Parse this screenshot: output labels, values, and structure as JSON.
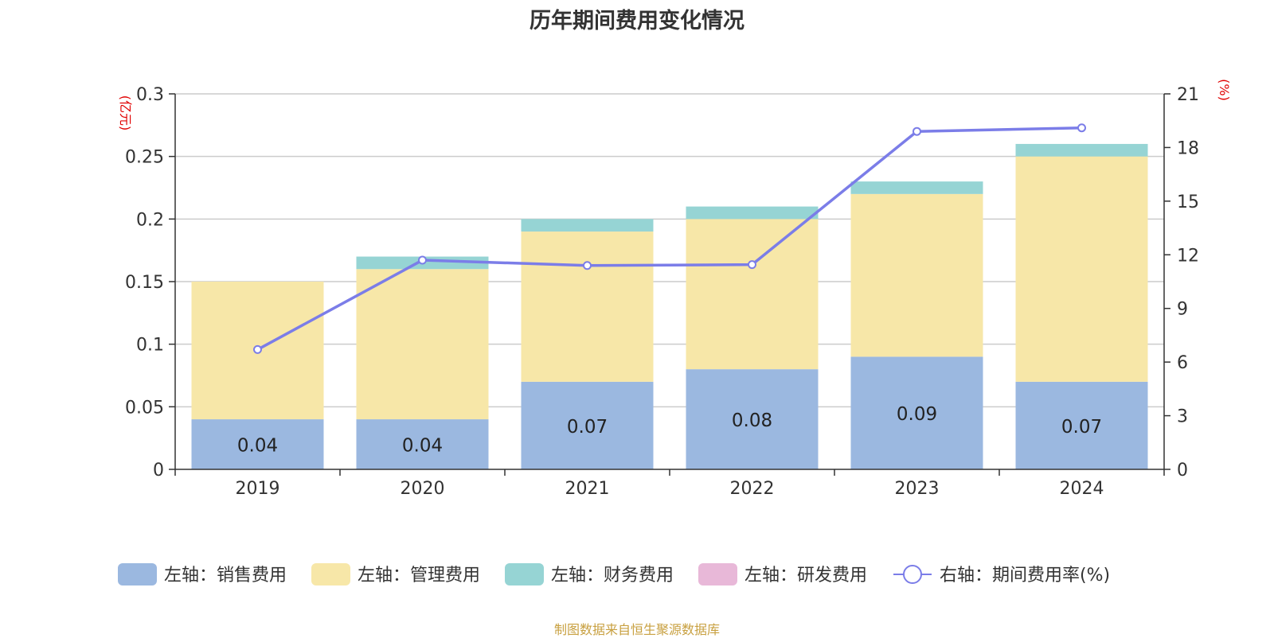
{
  "title": "历年期间费用变化情况",
  "source_note": "制图数据来自恒生聚源数据库",
  "chart_data": {
    "type": "bar",
    "stacked": true,
    "title": "历年期间费用变化情况",
    "categories": [
      "2019",
      "2020",
      "2021",
      "2022",
      "2023",
      "2024"
    ],
    "left_axis": {
      "unit": "(亿元)",
      "ylim": [
        0,
        0.3
      ],
      "ticks": [
        0,
        0.05,
        0.1,
        0.15,
        0.2,
        0.25,
        0.3
      ],
      "tick_labels": [
        "0",
        "0.05",
        "0.1",
        "0.15",
        "0.2",
        "0.25",
        "0.3"
      ]
    },
    "right_axis": {
      "unit": "(%)",
      "ylim": [
        0,
        21
      ],
      "ticks": [
        0,
        3,
        6,
        9,
        12,
        15,
        18,
        21
      ],
      "tick_labels": [
        "0",
        "3",
        "6",
        "9",
        "12",
        "15",
        "18",
        "21"
      ]
    },
    "grid": true,
    "legend_position": "bottom",
    "series": [
      {
        "name": "左轴：销售费用",
        "axis": "left",
        "type": "bar",
        "color": "#9bb8e0",
        "values": [
          0.04,
          0.04,
          0.07,
          0.08,
          0.09,
          0.07
        ],
        "labels": [
          "0.04",
          "0.04",
          "0.07",
          "0.08",
          "0.09",
          "0.07"
        ]
      },
      {
        "name": "左轴：管理费用",
        "axis": "left",
        "type": "bar",
        "color": "#f7e7a8",
        "values": [
          0.11,
          0.12,
          0.12,
          0.12,
          0.13,
          0.18
        ]
      },
      {
        "name": "左轴：财务费用",
        "axis": "left",
        "type": "bar",
        "color": "#96d4d4",
        "values": [
          0,
          0.01,
          0.01,
          0.01,
          0.01,
          0.01
        ]
      },
      {
        "name": "左轴：研发费用",
        "axis": "left",
        "type": "bar",
        "color": "#e8b8d8",
        "values": [
          0,
          0,
          0,
          0,
          0,
          0
        ]
      },
      {
        "name": "右轴：期间费用率(%)",
        "axis": "right",
        "type": "line",
        "color": "#7b7de8",
        "values": [
          6.7,
          11.7,
          11.4,
          11.45,
          18.9,
          19.1
        ]
      }
    ]
  }
}
